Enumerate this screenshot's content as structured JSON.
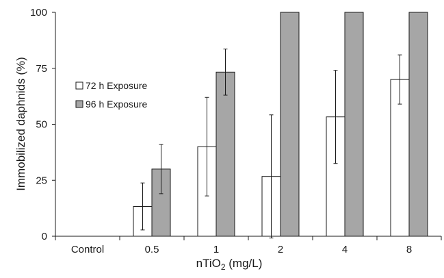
{
  "chart_data": {
    "type": "bar",
    "xlabel": "nTiO",
    "xlabel_sub": "2",
    "xlabel_unit": " (mg/L)",
    "ylabel": "Immobilized daphnids (%)",
    "ylim": [
      0,
      100
    ],
    "yticks": [
      "0",
      "25",
      "50",
      "75",
      "100"
    ],
    "grid": false,
    "legend_position": "left",
    "categories": [
      "Control",
      "0.5",
      "1",
      "2",
      "4",
      "8"
    ],
    "series": [
      {
        "name": "72 h Exposure",
        "color": "#ffffff",
        "values": [
          0,
          13.3,
          40,
          26.7,
          53.3,
          70
        ],
        "error": [
          0,
          10.5,
          22,
          27.5,
          20.8,
          11
        ]
      },
      {
        "name": "96 h Exposure",
        "color": "#a6a6a6",
        "values": [
          0,
          30,
          73.3,
          100,
          100,
          100
        ],
        "error": [
          0,
          11,
          10.3,
          0,
          0,
          0
        ]
      }
    ]
  }
}
